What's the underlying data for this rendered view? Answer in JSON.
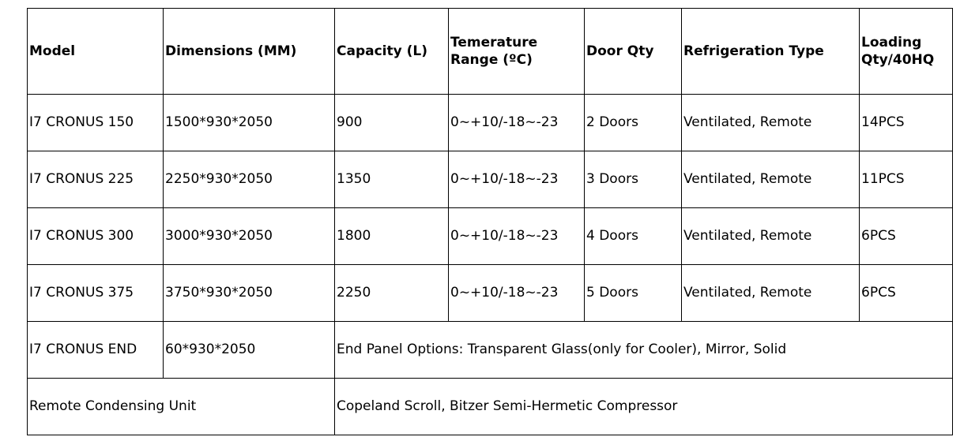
{
  "table": {
    "header": [
      "Model",
      "Dimensions (MM)",
      "Capacity (L)",
      "Temerature Range (ºC)",
      "Door Qty",
      "Refrigeration Type",
      "Loading Qty/40HQ"
    ],
    "rows": [
      [
        "I7 CRONUS 150",
        "1500*930*2050",
        "900",
        "0~+10/-18~-23",
        "2 Doors",
        "Ventilated, Remote",
        "14PCS"
      ],
      [
        "I7 CRONUS 225",
        "2250*930*2050",
        "1350",
        "0~+10/-18~-23",
        "3 Doors",
        "Ventilated, Remote",
        "11PCS"
      ],
      [
        "I7 CRONUS 300",
        "3000*930*2050",
        "1800",
        "0~+10/-18~-23",
        "4 Doors",
        "Ventilated, Remote",
        "6PCS"
      ],
      [
        "I7 CRONUS 375",
        "3750*930*2050",
        "2250",
        "0~+10/-18~-23",
        "5 Doors",
        "Ventilated, Remote",
        "6PCS"
      ],
      [
        "I7 CRONUS END",
        "60*930*2050",
        "End Panel Options: Transparent Glass(only for Cooler), Mirror, Solid"
      ],
      [
        "Remote Condensing Unit",
        "Copeland Scroll, Bitzer Semi-Hermetic Compressor"
      ]
    ]
  }
}
